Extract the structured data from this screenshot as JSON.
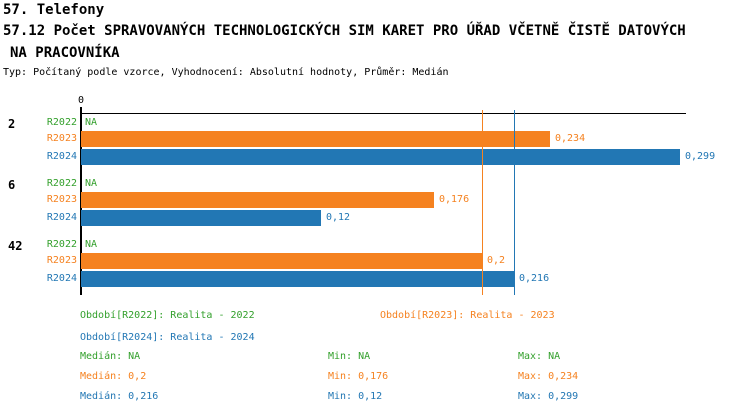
{
  "header": {
    "title": "57. Telefony",
    "subtitle_line1": "57.12 Počet SPRAVOVANÝCH TECHNOLOGICKÝCH SIM KARET PRO ÚŘAD VČETNĚ ČISTĚ DATOVÝCH",
    "subtitle_line2": "NA PRACOVNÍKA",
    "meta": "Typ: Počítaný podle vzorce, Vyhodnocení: Absolutní hodnoty, Průměr: Medián"
  },
  "colors": {
    "green": "#33A02C",
    "orange": "#F58220",
    "blue": "#2277B4",
    "axis": "#000000"
  },
  "chart_data": {
    "type": "bar",
    "orientation": "horizontal",
    "title": "57.12 Počet SPRAVOVANÝCH TECHNOLOGICKÝCH SIM KARET PRO ÚŘAD VČETNĚ ČISTĚ DATOVÝCH NA PRACOVNÍKA",
    "axis_zero_label": "0",
    "xlim": [
      0,
      0.302
    ],
    "grid": false,
    "series": [
      "R2022",
      "R2023",
      "R2024"
    ],
    "series_colors": {
      "R2022": "green",
      "R2023": "orange",
      "R2024": "blue"
    },
    "groups": [
      {
        "label": "2",
        "values": [
          {
            "series": "R2022",
            "value": null,
            "display": "NA"
          },
          {
            "series": "R2023",
            "value": 0.234,
            "display": "0,234"
          },
          {
            "series": "R2024",
            "value": 0.299,
            "display": "0,299"
          }
        ]
      },
      {
        "label": "6",
        "values": [
          {
            "series": "R2022",
            "value": null,
            "display": "NA"
          },
          {
            "series": "R2023",
            "value": 0.176,
            "display": "0,176"
          },
          {
            "series": "R2024",
            "value": 0.12,
            "display": "0,12"
          }
        ]
      },
      {
        "label": "42",
        "values": [
          {
            "series": "R2022",
            "value": null,
            "display": "NA"
          },
          {
            "series": "R2023",
            "value": 0.2,
            "display": "0,2"
          },
          {
            "series": "R2024",
            "value": 0.216,
            "display": "0,216"
          }
        ]
      }
    ],
    "median_lines": [
      {
        "series": "R2023",
        "value": 0.2,
        "color": "orange"
      },
      {
        "series": "R2024",
        "value": 0.216,
        "color": "blue"
      }
    ],
    "legend_position": "bottom"
  },
  "legend": [
    {
      "label": "Období[R2022]: Realita - 2022",
      "color": "green"
    },
    {
      "label": "Období[R2023]: Realita - 2023",
      "color": "orange"
    },
    {
      "label": "Období[R2024]: Realita - 2024",
      "color": "blue"
    }
  ],
  "stats": [
    {
      "color": "green",
      "median": "Medián: NA",
      "min": "Min: NA",
      "max": "Max: NA"
    },
    {
      "color": "orange",
      "median": "Medián: 0,2",
      "min": "Min: 0,176",
      "max": "Max: 0,234"
    },
    {
      "color": "blue",
      "median": "Medián: 0,216",
      "min": "Min: 0,12",
      "max": "Max: 0,299"
    }
  ]
}
